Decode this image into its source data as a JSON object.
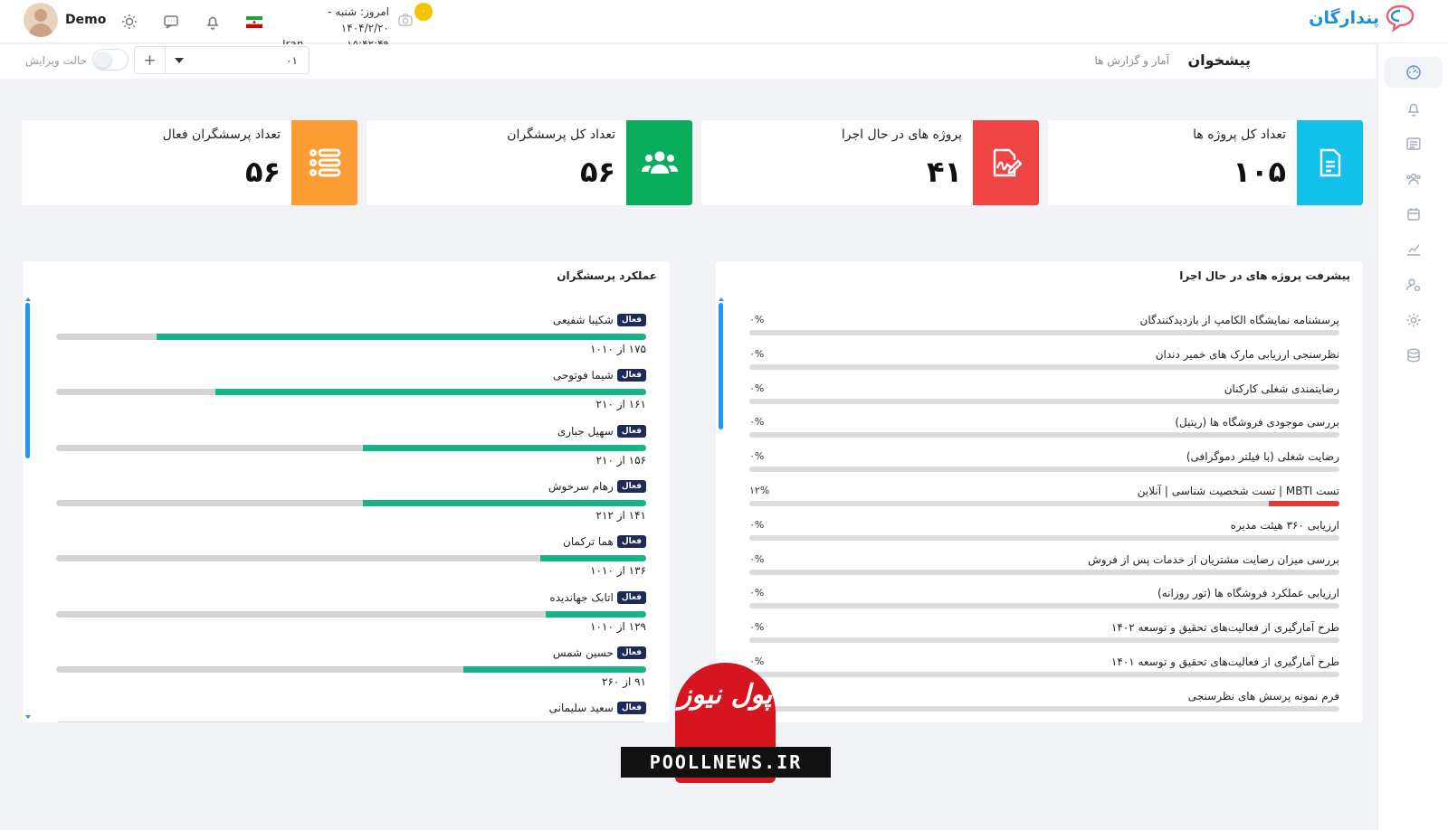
{
  "header": {
    "brand": "پندارگان",
    "user_name": "Demo",
    "date_line": "امروز: شنبه - ۱۴۰۴/۲/۲۰",
    "country": "Iran",
    "time": "۱۵:۴۲:۴۹",
    "notification_count": "۰"
  },
  "subheader": {
    "title": "پیشخوان",
    "breadcrumb": "آمار و گزارش ها",
    "edit_mode_label": "حالت ویرایش",
    "add_label": "+",
    "select_value": "۰۱"
  },
  "stats": [
    {
      "title": "تعداد کل پروژه ها",
      "value": "۱۰۵",
      "color": "#12c1ea",
      "icon": "document-icon"
    },
    {
      "title": "پروژه های در حال اجرا",
      "value": "۴۱",
      "color": "#ef4444",
      "icon": "signature-icon"
    },
    {
      "title": "تعداد کل پرسشگران",
      "value": "۵۶",
      "color": "#0aad5c",
      "icon": "users-icon"
    },
    {
      "title": "تعداد پرسشگران فعال",
      "value": "۵۶",
      "color": "#fb9d33",
      "icon": "list-icon"
    }
  ],
  "progress_panel": {
    "title": "پیشرفت پروژه های در حال اجرا",
    "items": [
      {
        "label": "پرسشنامه نمایشگاه الکامپ از بازدیدکنندگان",
        "percent_text": "۰%",
        "value": 0
      },
      {
        "label": "نظرسنجی ارزیابی مارک های خمیر دندان",
        "percent_text": "۰%",
        "value": 0
      },
      {
        "label": "رضایتمندی شغلی کارکنان",
        "percent_text": "۰%",
        "value": 0
      },
      {
        "label": "بررسی موجودی فروشگاه ها (ریتیل)",
        "percent_text": "۰%",
        "value": 0
      },
      {
        "label": "رضایت شغلی (با فیلتر دموگرافی)",
        "percent_text": "۰%",
        "value": 0
      },
      {
        "label": "تست MBTI | تست شخصیت شناسی | آنلاین",
        "percent_text": "۱۲%",
        "value": 12
      },
      {
        "label": "ارزیابی ۳۶۰ هیئت مدیره",
        "percent_text": "۰%",
        "value": 0
      },
      {
        "label": "بررسی میزان رضایت مشتریان از خدمات پس از فروش",
        "percent_text": "۰%",
        "value": 0
      },
      {
        "label": "ارزیابی عملکرد فروشگاه ها (تور روزانه)",
        "percent_text": "۰%",
        "value": 0
      },
      {
        "label": "طرح آمارگیری از فعالیت‌های تحقیق و توسعه ۱۴۰۲",
        "percent_text": "۰%",
        "value": 0
      },
      {
        "label": "طرح آمارگیری از فعالیت‌های تحقیق و توسعه ۱۴۰۱",
        "percent_text": "۰%",
        "value": 0
      },
      {
        "label": "فرم نمونه پرسش های نظرسنجی",
        "percent_text": "",
        "value": 0
      }
    ]
  },
  "surveyors_panel": {
    "title": "عملکرد پرسشگران",
    "badge": "فعال",
    "items": [
      {
        "name": "شکیبا شفیعی",
        "count_text": "۱۷۵ از ۱۰۱۰",
        "fraction": 0.83
      },
      {
        "name": "شیما فوتوحی",
        "count_text": "۱۶۱ از ۲۱۰",
        "fraction": 0.73
      },
      {
        "name": "سهیل جباری",
        "count_text": "۱۵۶ از ۲۱۰",
        "fraction": 0.48
      },
      {
        "name": "رهام سرخوش",
        "count_text": "۱۴۱ از ۲۱۲",
        "fraction": 0.48
      },
      {
        "name": "هما ترکمان",
        "count_text": "۱۳۶ از ۱۰۱۰",
        "fraction": 0.18
      },
      {
        "name": "اتابک جهاندیده",
        "count_text": "۱۲۹ از ۱۰۱۰",
        "fraction": 0.17
      },
      {
        "name": "حسین شمس",
        "count_text": "۹۱ از ۲۶۰",
        "fraction": 0.31
      },
      {
        "name": "سعید سلیمانی",
        "count_text": "",
        "fraction": 0
      }
    ]
  },
  "watermark": {
    "logo_text": "پول نیوز",
    "site": "POOLLNEWS.IR"
  }
}
